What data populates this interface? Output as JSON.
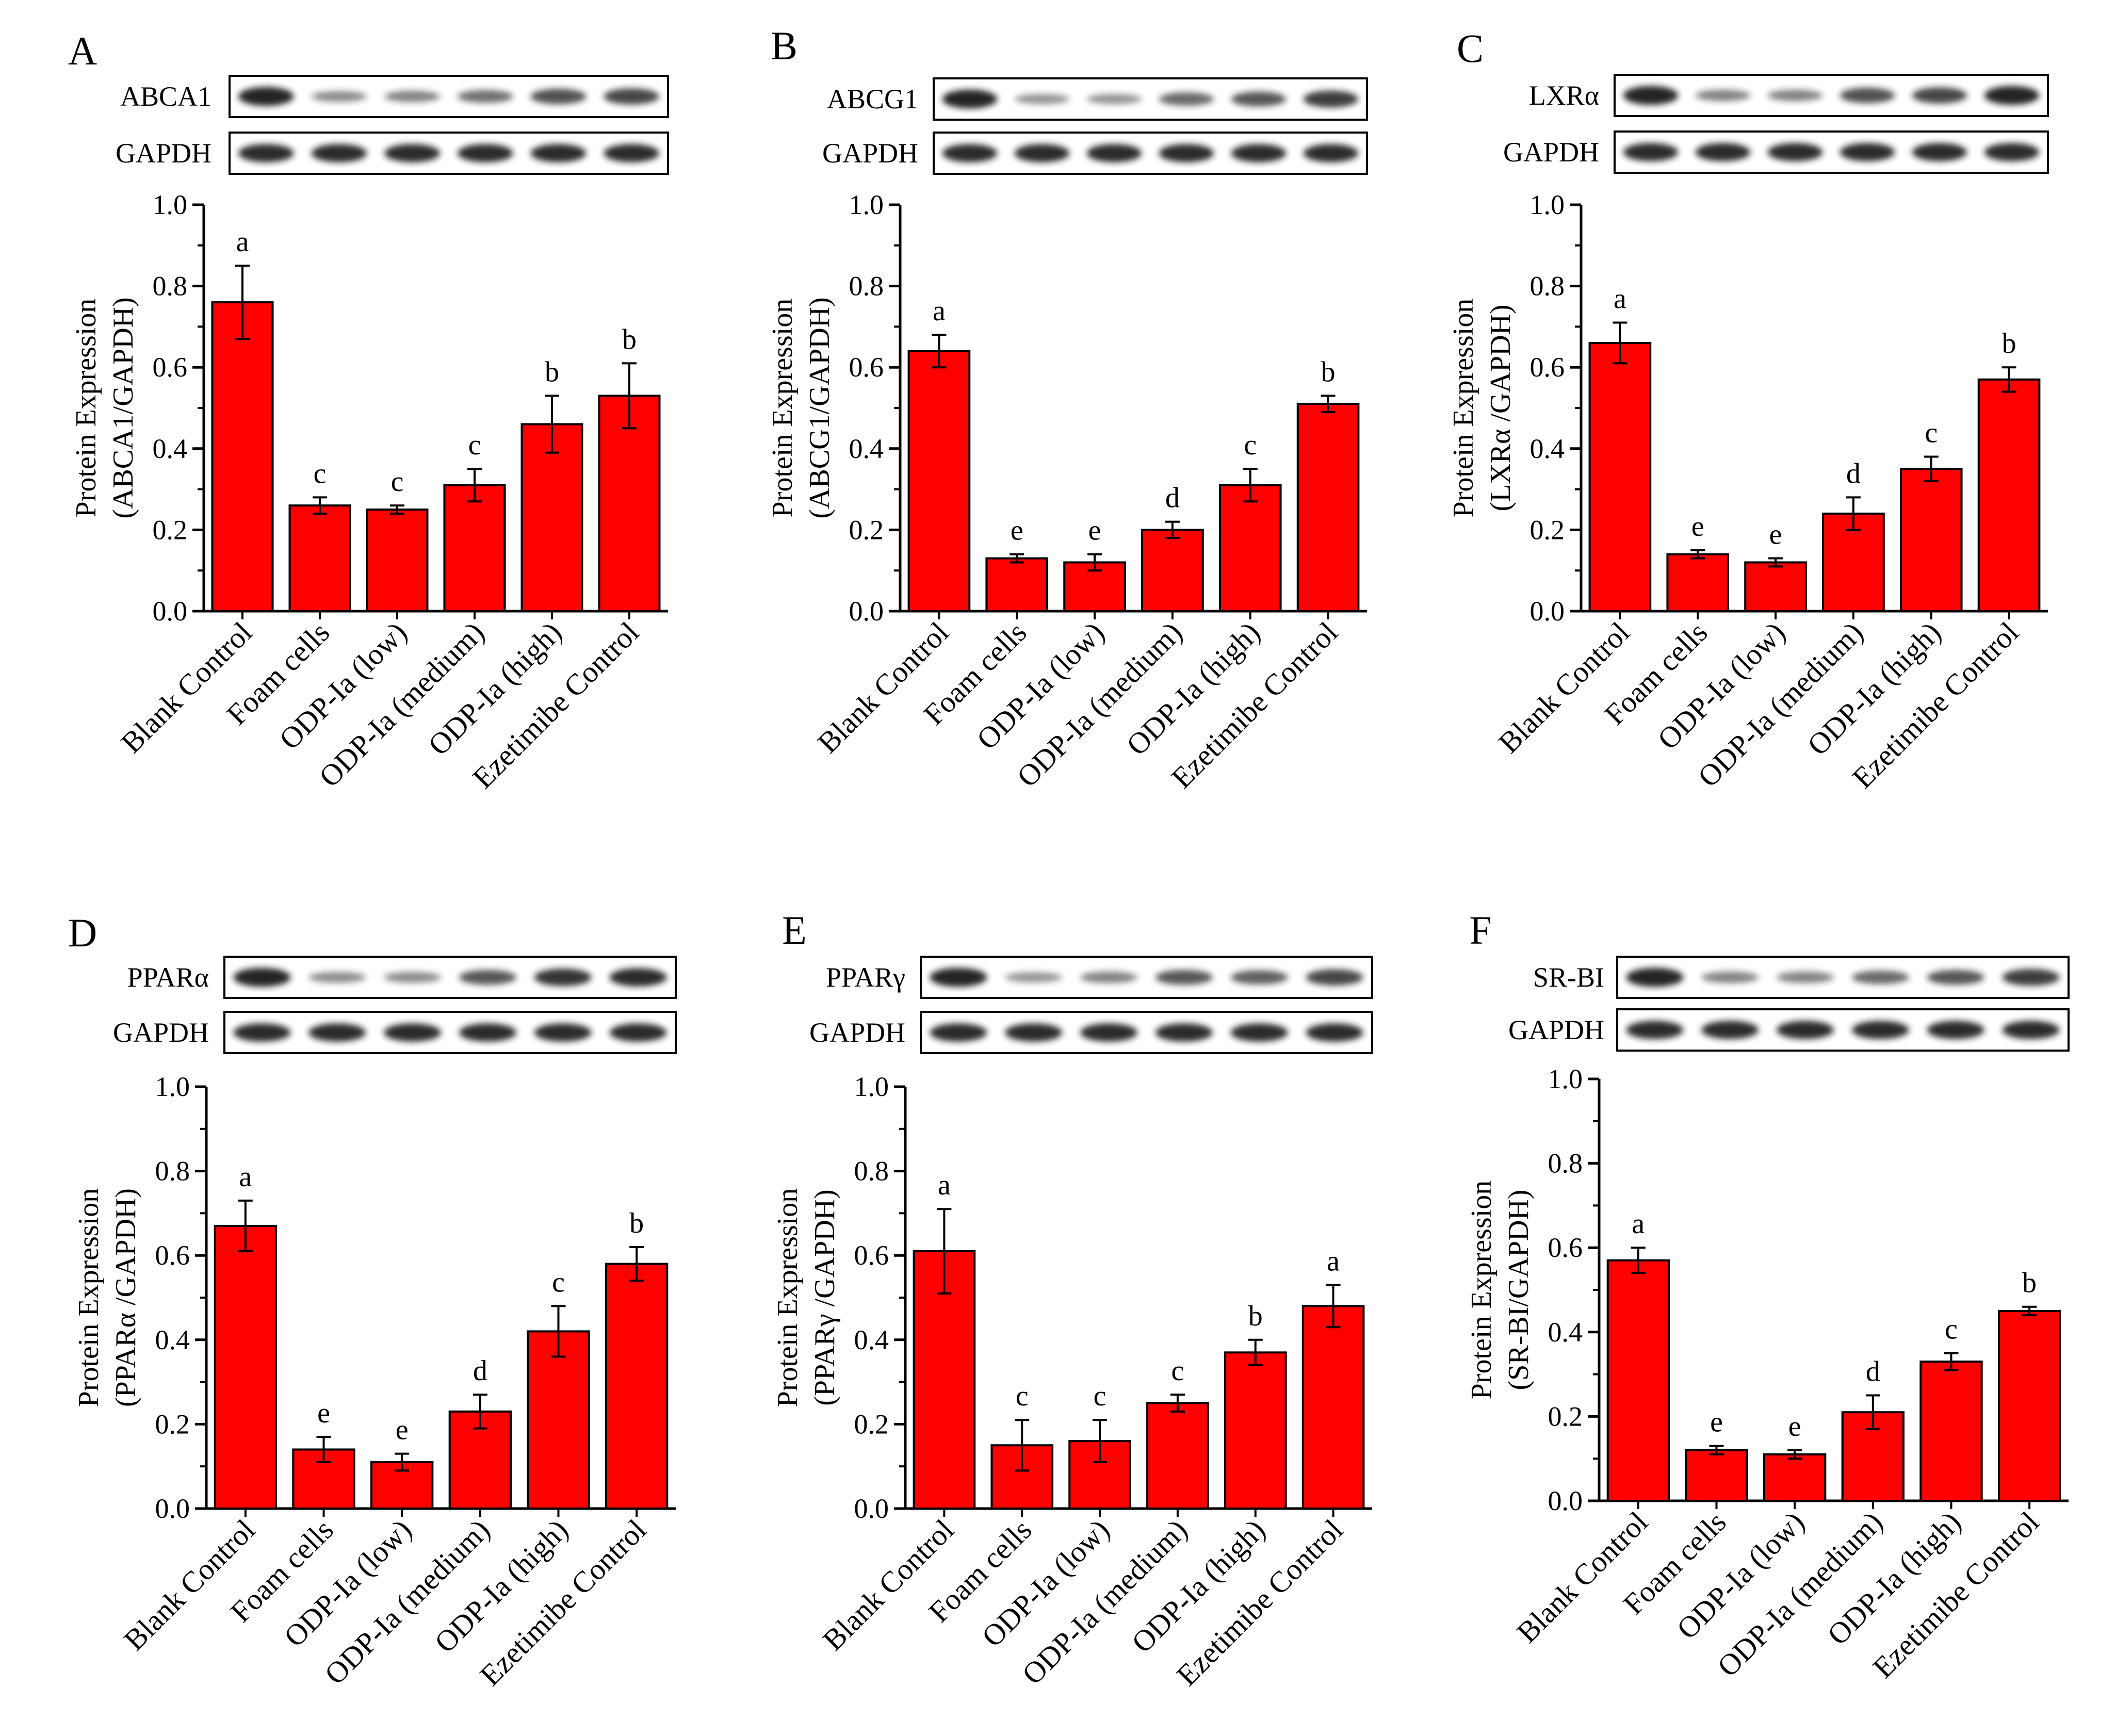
{
  "figure": {
    "bar_color": "#ff0000",
    "band_color": "#1a1a1a",
    "categories": [
      "Blank Control",
      "Foam cells",
      "ODP-Ia (low)",
      "ODP-Ia (medium)",
      "ODP-Ia (high)",
      "Ezetimibe Control"
    ],
    "y_ticks": [
      "0.0",
      "0.2",
      "0.4",
      "0.6",
      "0.8",
      "1.0"
    ]
  },
  "chart_data": [
    {
      "panel": "A",
      "type": "bar",
      "blot_labels": [
        "ABCA1",
        "GAPDH"
      ],
      "ylabel_line1": "Protein Expression",
      "ylabel_line2": "(ABCA1/GAPDH)",
      "ylim": [
        0,
        1.0
      ],
      "values": [
        0.76,
        0.26,
        0.25,
        0.31,
        0.46,
        0.53
      ],
      "errors": [
        0.09,
        0.02,
        0.01,
        0.04,
        0.07,
        0.08
      ],
      "letters": [
        "a",
        "c",
        "c",
        "c",
        "b",
        "b"
      ],
      "band_intensity": [
        0.95,
        0.35,
        0.4,
        0.5,
        0.7,
        0.75
      ]
    },
    {
      "panel": "B",
      "type": "bar",
      "blot_labels": [
        "ABCG1",
        "GAPDH"
      ],
      "ylabel_line1": "Protein Expression",
      "ylabel_line2": "(ABCG1/GAPDH)",
      "ylim": [
        0,
        1.0
      ],
      "values": [
        0.64,
        0.13,
        0.12,
        0.2,
        0.31,
        0.51
      ],
      "errors": [
        0.04,
        0.01,
        0.02,
        0.02,
        0.04,
        0.02
      ],
      "letters": [
        "a",
        "e",
        "e",
        "d",
        "c",
        "b"
      ],
      "band_intensity": [
        0.95,
        0.3,
        0.3,
        0.55,
        0.65,
        0.8
      ]
    },
    {
      "panel": "C",
      "type": "bar",
      "blot_labels": [
        "LXRα",
        "GAPDH"
      ],
      "ylabel_line1": "Protein Expression",
      "ylabel_line2": "(LXRα /GAPDH)",
      "ylim": [
        0,
        1.0
      ],
      "values": [
        0.66,
        0.14,
        0.12,
        0.24,
        0.35,
        0.57
      ],
      "errors": [
        0.05,
        0.01,
        0.01,
        0.04,
        0.03,
        0.03
      ],
      "letters": [
        "a",
        "e",
        "e",
        "d",
        "c",
        "b"
      ],
      "band_intensity": [
        0.95,
        0.4,
        0.4,
        0.7,
        0.75,
        0.95
      ]
    },
    {
      "panel": "D",
      "type": "bar",
      "blot_labels": [
        "PPARα",
        "GAPDH"
      ],
      "ylabel_line1": "Protein Expression",
      "ylabel_line2": "(PPARα /GAPDH)",
      "ylim": [
        0,
        1.0
      ],
      "values": [
        0.67,
        0.14,
        0.11,
        0.23,
        0.42,
        0.58
      ],
      "errors": [
        0.06,
        0.03,
        0.02,
        0.04,
        0.06,
        0.04
      ],
      "letters": [
        "a",
        "e",
        "e",
        "d",
        "c",
        "b"
      ],
      "band_intensity": [
        0.95,
        0.35,
        0.35,
        0.65,
        0.85,
        0.9
      ]
    },
    {
      "panel": "E",
      "type": "bar",
      "blot_labels": [
        "PPARγ",
        "GAPDH"
      ],
      "ylabel_line1": "Protein Expression",
      "ylabel_line2": "(PPARγ /GAPDH)",
      "ylim": [
        0,
        1.0
      ],
      "values": [
        0.61,
        0.15,
        0.16,
        0.25,
        0.37,
        0.48
      ],
      "errors": [
        0.1,
        0.06,
        0.05,
        0.02,
        0.03,
        0.05
      ],
      "letters": [
        "a",
        "c",
        "c",
        "c",
        "b",
        "a"
      ],
      "band_intensity": [
        0.95,
        0.3,
        0.4,
        0.65,
        0.6,
        0.75
      ]
    },
    {
      "panel": "F",
      "type": "bar",
      "blot_labels": [
        "SR-BI",
        "GAPDH"
      ],
      "ylabel_line1": "Protein Expression",
      "ylabel_line2": "(SR-BI/GAPDH)",
      "ylim": [
        0,
        1.0
      ],
      "values": [
        0.57,
        0.12,
        0.11,
        0.21,
        0.33,
        0.45
      ],
      "errors": [
        0.03,
        0.01,
        0.01,
        0.04,
        0.02,
        0.01
      ],
      "letters": [
        "a",
        "e",
        "e",
        "d",
        "c",
        "b"
      ],
      "band_intensity": [
        0.95,
        0.4,
        0.4,
        0.55,
        0.65,
        0.8
      ]
    }
  ]
}
